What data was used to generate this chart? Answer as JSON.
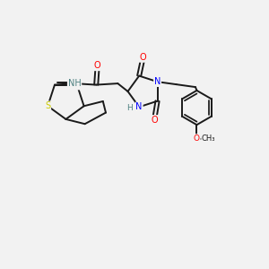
{
  "bg_color": "#f2f2f2",
  "bond_color": "#1a1a1a",
  "N_color": "#0000ff",
  "S_color": "#cccc00",
  "O_color": "#ff0000",
  "C_color": "#1a1a1a",
  "H_color": "#4d8080",
  "figsize": [
    3.0,
    3.0
  ],
  "dpi": 100,
  "lw": 1.4,
  "fs": 7.0,
  "xlim": [
    0,
    10
  ],
  "ylim": [
    0,
    10
  ]
}
